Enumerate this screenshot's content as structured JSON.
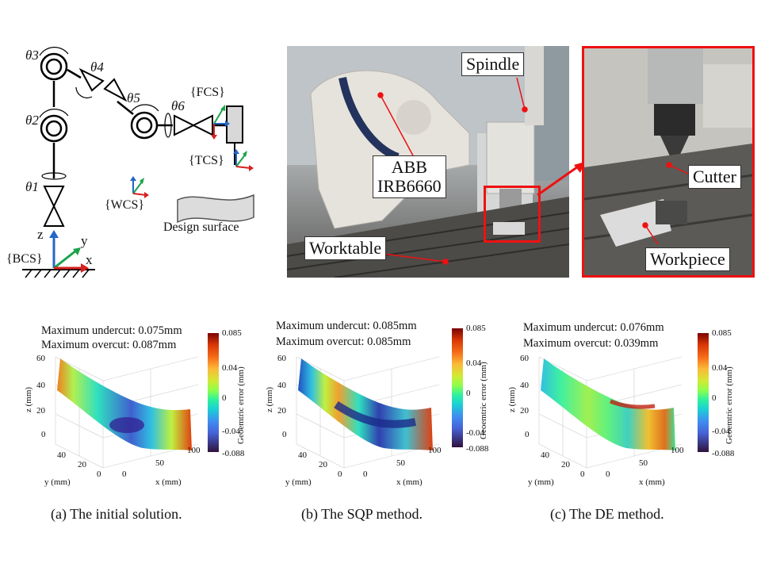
{
  "robot_diagram": {
    "joints": [
      "θ3",
      "θ4",
      "θ2",
      "θ5",
      "θ6",
      "θ1"
    ],
    "frames": [
      "{FCS}",
      "{TCS}",
      "{WCS}",
      "{BCS}"
    ],
    "axes": [
      "z",
      "y",
      "x"
    ],
    "design_surface_label": "Design surface"
  },
  "photo_labels": {
    "spindle": "Spindle",
    "robot_line1": "ABB",
    "robot_line2": "IRB6660",
    "worktable": "Worktable",
    "cutter": "Cutter",
    "workpiece": "Workpiece"
  },
  "colorbar": {
    "ticks": [
      "0.085",
      "0.04",
      "0",
      "-0.04",
      "-0.088"
    ],
    "title": "Geoemtric error (mm)",
    "colors": [
      "#7a0403",
      "#f56b18",
      "#8ffe4b",
      "#3f8ef0",
      "#30123b"
    ]
  },
  "plots": [
    {
      "undercut": "Maximum undercut: 0.075mm",
      "overcut": "Maximum overcut: 0.087mm",
      "caption": "(a) The initial solution."
    },
    {
      "undercut": "Maximum undercut: 0.085mm",
      "overcut": "Maximum overcut: 0.085mm",
      "caption": "(b) The SQP method."
    },
    {
      "undercut": "Maximum undercut: 0.076mm",
      "overcut": "Maximum overcut: 0.039mm",
      "caption": "(c) The DE method."
    }
  ],
  "plot_axes": {
    "z_ticks": [
      "60",
      "40",
      "20",
      "0"
    ],
    "z_label": "z (mm)",
    "y_ticks": [
      "40",
      "20",
      "0"
    ],
    "y_label": "y (mm)",
    "x_ticks": [
      "0",
      "50",
      "100"
    ],
    "x_label": "x (mm)"
  }
}
